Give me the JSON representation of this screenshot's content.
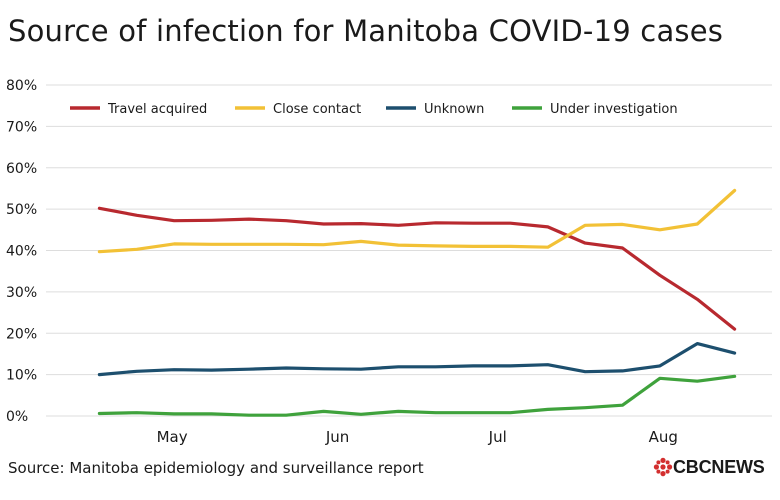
{
  "title": "Source of infection for Manitoba COVID-19 cases",
  "source": "Source: Manitoba epidemiology and surveillance report",
  "logo": {
    "cbc": "CBC",
    "news": "NEWS",
    "icon": "cbc-gem-icon"
  },
  "colors": {
    "travel": "#b8292f",
    "close": "#f2c136",
    "unknown": "#1d4f6e",
    "investigation": "#3fa23c",
    "grid": "#dddddd",
    "text": "#1a1a1a",
    "logo_red": "#d32f2f"
  },
  "chart_data": {
    "type": "line",
    "title": "Source of infection for Manitoba COVID-19 cases",
    "xlabel": "",
    "ylabel": "",
    "ylim": [
      0,
      80
    ],
    "yticks": [
      0,
      10,
      20,
      30,
      40,
      50,
      60,
      70,
      80
    ],
    "ytick_labels": [
      "0%",
      "10%",
      "20%",
      "30%",
      "40%",
      "50%",
      "60%",
      "70%",
      "80%"
    ],
    "x": [
      "2020-04-20",
      "2020-04-27",
      "2020-05-04",
      "2020-05-11",
      "2020-05-18",
      "2020-05-25",
      "2020-06-01",
      "2020-06-08",
      "2020-06-15",
      "2020-06-22",
      "2020-06-29",
      "2020-07-06",
      "2020-07-13",
      "2020-07-20",
      "2020-07-27",
      "2020-08-03",
      "2020-08-10",
      "2020-08-17"
    ],
    "xticks": [
      "2020-05-01",
      "2020-06-01",
      "2020-07-01",
      "2020-08-01"
    ],
    "xtick_labels": [
      "May",
      "Jun",
      "Jul",
      "Aug"
    ],
    "grid": true,
    "legend_position": "top",
    "series": [
      {
        "name": "Travel acquired",
        "color_key": "travel",
        "values": [
          50.2,
          48.5,
          47.2,
          47.3,
          47.6,
          47.2,
          46.4,
          46.5,
          46.1,
          46.7,
          46.6,
          46.6,
          45.7,
          41.8,
          40.6,
          34.0,
          28.2,
          21.0
        ]
      },
      {
        "name": "Close contact",
        "color_key": "close",
        "values": [
          39.7,
          40.3,
          41.6,
          41.5,
          41.5,
          41.5,
          41.4,
          42.2,
          41.3,
          41.1,
          41.0,
          41.0,
          40.8,
          46.1,
          46.3,
          45.0,
          46.4,
          54.5
        ]
      },
      {
        "name": "Unknown",
        "color_key": "unknown",
        "values": [
          10.0,
          10.8,
          11.2,
          11.1,
          11.3,
          11.6,
          11.4,
          11.3,
          11.9,
          11.9,
          12.1,
          12.1,
          12.4,
          10.7,
          10.9,
          12.1,
          17.5,
          15.2
        ]
      },
      {
        "name": "Under investigation",
        "color_key": "investigation",
        "values": [
          0.6,
          0.8,
          0.5,
          0.5,
          0.2,
          0.2,
          1.1,
          0.4,
          1.1,
          0.8,
          0.8,
          0.8,
          1.6,
          2.0,
          2.6,
          9.1,
          8.4,
          9.6
        ]
      }
    ]
  }
}
